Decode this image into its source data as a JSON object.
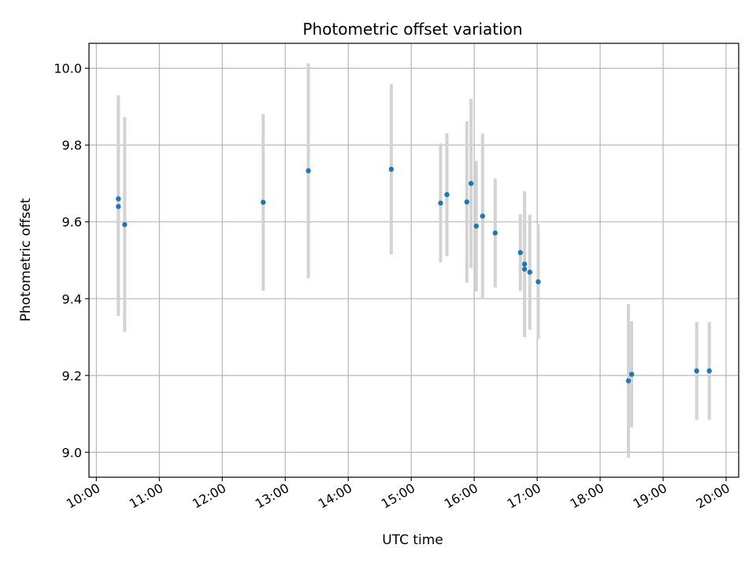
{
  "chart_data": {
    "type": "scatter",
    "title": "Photometric offset variation",
    "xlabel": "UTC time",
    "ylabel": "Photometric offset",
    "xlim": [
      "09:53",
      "20:12"
    ],
    "ylim": [
      8.935,
      10.065
    ],
    "x_ticks": [
      "10:00",
      "11:00",
      "12:00",
      "13:00",
      "14:00",
      "15:00",
      "16:00",
      "17:00",
      "18:00",
      "19:00",
      "20:00"
    ],
    "y_ticks": [
      9.0,
      9.2,
      9.4,
      9.6,
      9.8,
      10.0
    ],
    "y_tick_labels": [
      "9.0",
      "9.2",
      "9.4",
      "9.6",
      "9.8",
      "10.0"
    ],
    "grid": true,
    "marker_color": "#1f77b4",
    "errorbar_color": "#d3d3d3",
    "points": [
      {
        "x": "10:21",
        "y": 9.66,
        "err": 0.27
      },
      {
        "x": "10:21",
        "y": 9.64,
        "err": 0.285
      },
      {
        "x": "10:27",
        "y": 9.593,
        "err": 0.28
      },
      {
        "x": "12:39",
        "y": 9.651,
        "err": 0.23
      },
      {
        "x": "13:22",
        "y": 9.733,
        "err": 0.28
      },
      {
        "x": "14:41",
        "y": 9.737,
        "err": 0.222
      },
      {
        "x": "15:28",
        "y": 9.649,
        "err": 0.155
      },
      {
        "x": "15:34",
        "y": 9.671,
        "err": 0.16
      },
      {
        "x": "15:53",
        "y": 9.652,
        "err": 0.21
      },
      {
        "x": "15:57",
        "y": 9.7,
        "err": 0.22
      },
      {
        "x": "16:02",
        "y": 9.589,
        "err": 0.17
      },
      {
        "x": "16:08",
        "y": 9.615,
        "err": 0.215
      },
      {
        "x": "16:20",
        "y": 9.571,
        "err": 0.142
      },
      {
        "x": "16:44",
        "y": 9.52,
        "err": 0.1
      },
      {
        "x": "16:48",
        "y": 9.49,
        "err": 0.19
      },
      {
        "x": "16:48",
        "y": 9.477,
        "err": 0.15
      },
      {
        "x": "16:53",
        "y": 9.469,
        "err": 0.15
      },
      {
        "x": "17:01",
        "y": 9.444,
        "err": 0.15
      },
      {
        "x": "18:27",
        "y": 9.186,
        "err": 0.2
      },
      {
        "x": "18:30",
        "y": 9.203,
        "err": 0.138
      },
      {
        "x": "19:32",
        "y": 9.212,
        "err": 0.127
      },
      {
        "x": "19:44",
        "y": 9.212,
        "err": 0.127
      }
    ]
  }
}
